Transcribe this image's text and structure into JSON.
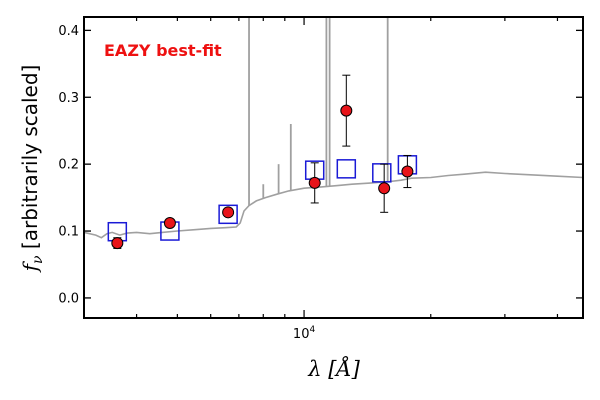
{
  "chart_data": {
    "type": "scatter",
    "title": "",
    "annotation": "EAZY best-fit",
    "xlabel": "λ [Å]",
    "ylabel": "f_ν [arbitrarily scaled]",
    "x_scale": "log",
    "xlim": [
      3000,
      46000
    ],
    "ylim": [
      -0.03,
      0.42
    ],
    "x_tick_labels": [
      {
        "value": 10000,
        "label": "10^4"
      }
    ],
    "y_tick_labels": [
      "0.0",
      "0.1",
      "0.2",
      "0.3",
      "0.4"
    ],
    "y_ticks": [
      0.0,
      0.1,
      0.2,
      0.3,
      0.4
    ],
    "grid": false,
    "colors": {
      "observed": "#e8141a",
      "model_photometry": "#1a1ad6",
      "template": "#a0a0a0",
      "annotation": "#ee1111"
    },
    "series": [
      {
        "kind": "observed_photometry",
        "x": [
          3600,
          4800,
          6600,
          10600,
          12600,
          15500,
          17600
        ],
        "y": [
          0.082,
          0.112,
          0.128,
          0.172,
          0.28,
          0.164,
          0.189
        ],
        "yerr": [
          0.008,
          0.006,
          0.006,
          0.03,
          0.053,
          0.036,
          0.024
        ]
      },
      {
        "kind": "model_photometry",
        "x": [
          3600,
          4800,
          6600,
          10600,
          12600,
          15300,
          17600
        ],
        "y": [
          0.099,
          0.1,
          0.125,
          0.191,
          0.193,
          0.187,
          0.199
        ]
      },
      {
        "kind": "template_sed",
        "continuum": [
          [
            3000,
            0.098
          ],
          [
            3200,
            0.094
          ],
          [
            3300,
            0.09
          ],
          [
            3400,
            0.096
          ],
          [
            3500,
            0.098
          ],
          [
            3650,
            0.094
          ],
          [
            3800,
            0.097
          ],
          [
            4000,
            0.098
          ],
          [
            4300,
            0.096
          ],
          [
            4600,
            0.098
          ],
          [
            5000,
            0.1
          ],
          [
            5500,
            0.102
          ],
          [
            6000,
            0.104
          ],
          [
            6500,
            0.105
          ],
          [
            6900,
            0.106
          ],
          [
            7050,
            0.112
          ],
          [
            7200,
            0.13
          ],
          [
            7400,
            0.138
          ],
          [
            7700,
            0.145
          ],
          [
            8100,
            0.15
          ],
          [
            8600,
            0.155
          ],
          [
            9200,
            0.16
          ],
          [
            10000,
            0.164
          ],
          [
            11000,
            0.166
          ],
          [
            12000,
            0.168
          ],
          [
            13000,
            0.17
          ],
          [
            14500,
            0.172
          ],
          [
            16000,
            0.174
          ],
          [
            17000,
            0.176
          ],
          [
            18000,
            0.179
          ],
          [
            20000,
            0.18
          ],
          [
            22000,
            0.183
          ],
          [
            24000,
            0.185
          ],
          [
            27000,
            0.188
          ],
          [
            30000,
            0.186
          ],
          [
            35000,
            0.184
          ],
          [
            40000,
            0.182
          ],
          [
            46000,
            0.18
          ]
        ],
        "emission_lines": [
          {
            "x": 7400,
            "peak": 0.43
          },
          {
            "x": 8000,
            "peak": 0.17
          },
          {
            "x": 8700,
            "peak": 0.2
          },
          {
            "x": 9300,
            "peak": 0.26
          },
          {
            "x": 10400,
            "peak": 0.18
          },
          {
            "x": 11300,
            "peak": 0.43
          },
          {
            "x": 11500,
            "peak": 0.43
          },
          {
            "x": 15800,
            "peak": 0.43
          }
        ]
      }
    ]
  }
}
